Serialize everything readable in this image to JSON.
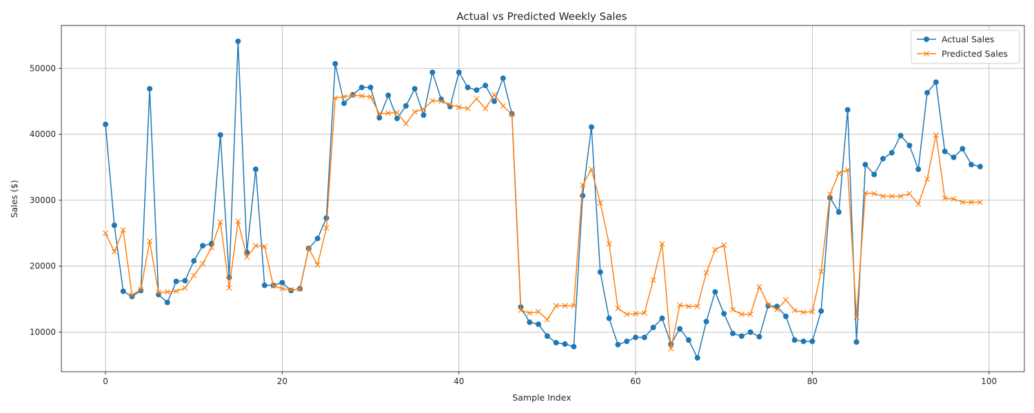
{
  "chart_data": {
    "type": "line",
    "title": "Actual vs Predicted Weekly Sales",
    "xlabel": "Sample Index",
    "ylabel": "Sales ($)",
    "xlim": [
      -5,
      104
    ],
    "ylim": [
      4000,
      56500
    ],
    "xticks": [
      0,
      20,
      40,
      60,
      80,
      100
    ],
    "yticks": [
      10000,
      20000,
      30000,
      40000,
      50000
    ],
    "grid": true,
    "legend_position": "top-right",
    "series": [
      {
        "name": "Actual Sales",
        "color": "#1f77b4",
        "marker": "circle",
        "values": [
          41500,
          26200,
          16200,
          15400,
          16300,
          46900,
          15700,
          14500,
          17700,
          17800,
          20800,
          23100,
          23400,
          39900,
          18300,
          54100,
          22100,
          34700,
          17100,
          17100,
          17500,
          16300,
          16600,
          22700,
          24200,
          27300,
          50700,
          44700,
          46000,
          47100,
          47100,
          42500,
          45900,
          42400,
          44300,
          46900,
          42900,
          49400,
          45300,
          44200,
          49400,
          47100,
          46700,
          47400,
          45000,
          48500,
          43100,
          13800,
          11500,
          11200,
          9400,
          8400,
          8200,
          7800,
          30700,
          41100,
          19100,
          12100,
          8100,
          8600,
          9200,
          9200,
          10700,
          12100,
          8200,
          10500,
          8800,
          6100,
          11600,
          16100,
          12800,
          9800,
          9400,
          10000,
          9300,
          14000,
          13900,
          12400,
          8800,
          8600,
          8600,
          13200,
          30400,
          28200,
          43700,
          8500,
          35400,
          33900,
          36300,
          37200,
          39800,
          38300,
          34700,
          46300,
          47900,
          37400,
          36500,
          37800,
          35400,
          35100
        ]
      },
      {
        "name": "Predicted Sales",
        "color": "#ff7f0e",
        "marker": "x",
        "values": [
          25000,
          22200,
          25500,
          15600,
          16500,
          23800,
          16000,
          16100,
          16200,
          16700,
          18600,
          20400,
          22800,
          26700,
          16700,
          26800,
          21400,
          23100,
          23000,
          17000,
          16600,
          16400,
          16500,
          22700,
          20200,
          25800,
          45500,
          45700,
          45900,
          45800,
          45700,
          43100,
          43200,
          43300,
          41600,
          43400,
          43800,
          45100,
          45000,
          44500,
          44100,
          43900,
          45400,
          43900,
          46000,
          44300,
          43000,
          13300,
          12900,
          13100,
          11900,
          14000,
          14000,
          14000,
          32300,
          34700,
          29600,
          23400,
          13600,
          12700,
          12800,
          12900,
          17900,
          23400,
          7500,
          14100,
          13900,
          13900,
          19000,
          22500,
          23200,
          13400,
          12700,
          12700,
          16900,
          14200,
          13400,
          14900,
          13300,
          13000,
          13100,
          19200,
          30900,
          34100,
          34600,
          12300,
          31100,
          31000,
          30600,
          30600,
          30600,
          31000,
          29400,
          33200,
          39900,
          30300,
          30200,
          29700,
          29700,
          29700
        ]
      }
    ]
  }
}
